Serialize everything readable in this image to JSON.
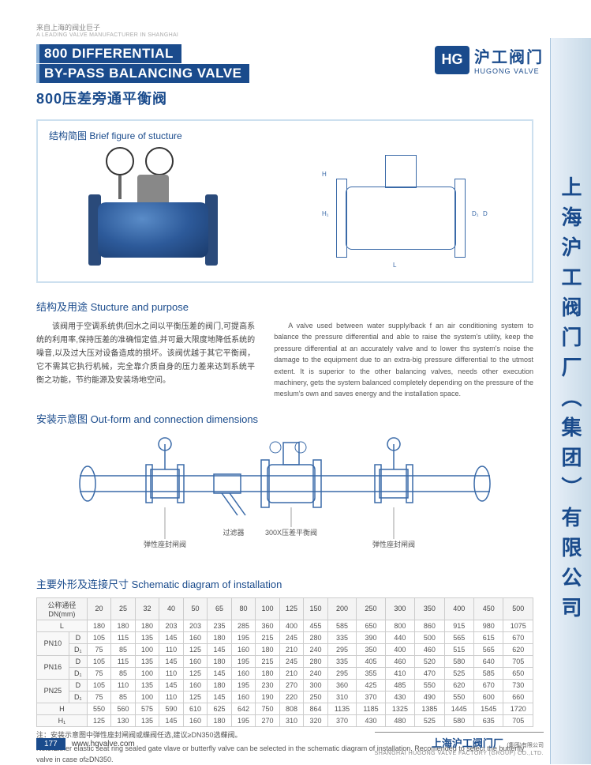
{
  "tagline_cn": "来自上海的阀业巨子",
  "tagline_en": "A LEADING VALVE MANUFACTURER IN SHANGHAI",
  "title_en_1": "800 DIFFERENTIAL",
  "title_en_2": "BY-PASS BALANCING VALVE",
  "title_cn": "800压差旁通平衡阀",
  "logo_cn": "沪工阀门",
  "logo_en": "HUGONG VALVE",
  "vertical_company": "上海沪工阀门厂（集团）有限公司",
  "fig_title": "结构简图  Brief figure of stucture",
  "sec_structure": "结构及用途  Stucture and purpose",
  "body_cn": "该阀用于空调系统供/回水之间以平衡压差的阀门,可提高系统的利用率,保持压差的准确恒定值,并可最大限度地降低系统的噪音,以及过大压对设备造成的损坏。该阀优越于其它平衡阀，它不需其它执行机械，完全靠介质自身的压力差来达到系统平衡之功能，节约能源及安装场地空间。",
  "body_en": "A valve used between water supply/back f an air conditioning system to balance the pressure differential and able to raise the system's utility, keep the pressure differential at an accurately valve and to lower ths system's noise the damage to the equipment due to an extra-big pressure differential to the utmost extent. It is superior to the other balancing valves, needs other execution machinery, gets the system balanced completely depending on the pressure of the meslum's own and saves energy and the installation space.",
  "sec_install": "安装示意图  Out-form and connection dimensions",
  "sec_schematic": "主要外形及连接尺寸  Schematic diagram of installation",
  "install_labels": {
    "center": "300X压差平衡阀",
    "left": "弹性座封闸阀",
    "right": "弹性座封闸阀",
    "filter": "过滤器"
  },
  "table": {
    "header_label": "公称通径\nDN(mm)",
    "cols": [
      "20",
      "25",
      "32",
      "40",
      "50",
      "65",
      "80",
      "100",
      "125",
      "150",
      "200",
      "250",
      "300",
      "350",
      "400",
      "450",
      "500"
    ],
    "rows": [
      {
        "group": "",
        "label": "L",
        "vals": [
          "180",
          "180",
          "180",
          "203",
          "203",
          "235",
          "285",
          "360",
          "400",
          "455",
          "585",
          "650",
          "800",
          "860",
          "915",
          "980",
          "1075"
        ]
      },
      {
        "group": "PN10",
        "label": "D",
        "vals": [
          "105",
          "115",
          "135",
          "145",
          "160",
          "180",
          "195",
          "215",
          "245",
          "280",
          "335",
          "390",
          "440",
          "500",
          "565",
          "615",
          "670"
        ]
      },
      {
        "group": "PN10",
        "label": "D₁",
        "vals": [
          "75",
          "85",
          "100",
          "110",
          "125",
          "145",
          "160",
          "180",
          "210",
          "240",
          "295",
          "350",
          "400",
          "460",
          "515",
          "565",
          "620"
        ]
      },
      {
        "group": "PN16",
        "label": "D",
        "vals": [
          "105",
          "115",
          "135",
          "145",
          "160",
          "180",
          "195",
          "215",
          "245",
          "280",
          "335",
          "405",
          "460",
          "520",
          "580",
          "640",
          "705"
        ]
      },
      {
        "group": "PN16",
        "label": "D₁",
        "vals": [
          "75",
          "85",
          "100",
          "110",
          "125",
          "145",
          "160",
          "180",
          "210",
          "240",
          "295",
          "355",
          "410",
          "470",
          "525",
          "585",
          "650"
        ]
      },
      {
        "group": "PN25",
        "label": "D",
        "vals": [
          "105",
          "110",
          "135",
          "145",
          "160",
          "180",
          "195",
          "230",
          "270",
          "300",
          "360",
          "425",
          "485",
          "550",
          "620",
          "670",
          "730"
        ]
      },
      {
        "group": "PN25",
        "label": "D₁",
        "vals": [
          "75",
          "85",
          "100",
          "110",
          "125",
          "145",
          "160",
          "190",
          "220",
          "250",
          "310",
          "370",
          "430",
          "490",
          "550",
          "600",
          "660"
        ]
      },
      {
        "group": "",
        "label": "H",
        "vals": [
          "550",
          "560",
          "575",
          "590",
          "610",
          "625",
          "642",
          "750",
          "808",
          "864",
          "1135",
          "1185",
          "1325",
          "1385",
          "1445",
          "1545",
          "1720"
        ]
      },
      {
        "group": "",
        "label": "H₁",
        "vals": [
          "125",
          "130",
          "135",
          "145",
          "160",
          "180",
          "195",
          "270",
          "310",
          "320",
          "370",
          "430",
          "480",
          "525",
          "580",
          "635",
          "705"
        ]
      }
    ]
  },
  "note_cn": "注：安装示意图中弹性座封闸阀或蝶阀任选,建议≥DN350选蝶阀。",
  "note_en": "Note:Either elastic seat ring sealed gate vlave or butterfly valve can be selected in the schematic diagram of installation. Recomended to select the butterfly valve in case of≥DN350.",
  "page_num": "177",
  "website": "www.hgvalve.com",
  "footer_cn": "上海沪工阀门厂",
  "footer_sub": "(集团)有限公司",
  "footer_en": "SHANGHAI HUGONG VALVE FACTORY (GROUP) CO.,LTD.",
  "colors": {
    "brand": "#1a4b8c",
    "accent": "#cde0ef",
    "border": "#cccccc",
    "text": "#444444"
  }
}
